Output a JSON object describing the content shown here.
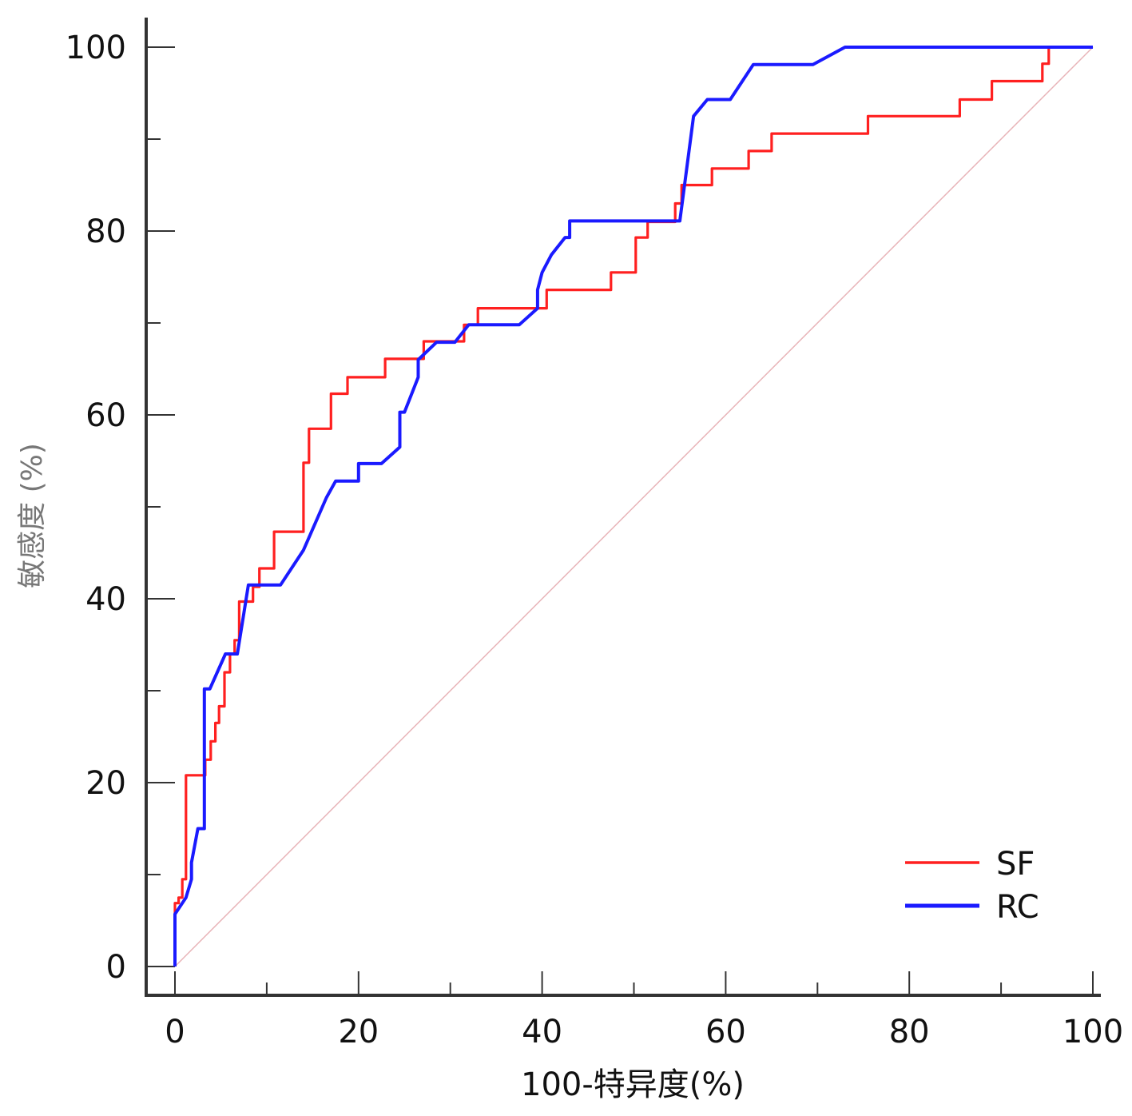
{
  "chart_data": {
    "type": "line",
    "title": "",
    "xlabel": "100-特异度(%)",
    "ylabel": "敏感度 (%)",
    "xlim": [
      0,
      100
    ],
    "ylim": [
      0,
      100
    ],
    "x_ticks": [
      0,
      20,
      40,
      60,
      80,
      100
    ],
    "y_ticks": [
      0,
      20,
      40,
      60,
      80,
      100
    ],
    "x_tick_labels": [
      "0",
      "20",
      "40",
      "60",
      "80",
      "100"
    ],
    "y_tick_labels": [
      "0",
      "20",
      "40",
      "60",
      "80",
      "100"
    ],
    "grid": false,
    "legend_position": "bottom-right",
    "reference_line": {
      "x": [
        0,
        100
      ],
      "y": [
        0,
        100
      ],
      "color": "#e8b4b8"
    },
    "series": [
      {
        "name": "SF",
        "color": "#ff2020",
        "x": [
          0,
          0,
          0.4,
          0.4,
          0.8,
          0.8,
          1.2,
          1.2,
          3.3,
          3.3,
          3.9,
          3.9,
          4.4,
          4.4,
          4.8,
          4.8,
          5.4,
          5.4,
          6,
          6,
          6.5,
          6.5,
          7,
          7,
          8.5,
          8.5,
          9.2,
          9.2,
          10.8,
          10.8,
          14,
          14,
          14.6,
          14.6,
          17,
          17,
          18.8,
          18.8,
          22.9,
          22.9,
          27.1,
          27.1,
          31.5,
          31.5,
          33,
          33,
          40.5,
          40.5,
          47.5,
          47.5,
          50.2,
          50.2,
          51.5,
          51.5,
          54.5,
          54.5,
          55.2,
          55.2,
          58.5,
          58.5,
          62.5,
          62.5,
          65,
          65,
          75.5,
          75.5,
          85.5,
          85.5,
          89,
          89,
          94.5,
          94.5,
          95.2,
          95.2
        ],
        "y": [
          0,
          6.9,
          6.9,
          7.5,
          7.5,
          9.5,
          9.5,
          20.8,
          20.8,
          22.5,
          22.5,
          24.5,
          24.5,
          26.5,
          26.5,
          28.3,
          28.3,
          32,
          32,
          34,
          34,
          35.5,
          35.5,
          39.7,
          39.7,
          41.3,
          41.3,
          43.3,
          43.3,
          47.3,
          47.3,
          54.8,
          54.8,
          58.5,
          58.5,
          62.3,
          62.3,
          64.1,
          64.1,
          66.1,
          66.1,
          68,
          68,
          69.8,
          69.8,
          71.6,
          71.6,
          73.6,
          73.6,
          75.5,
          75.5,
          79.3,
          79.3,
          81,
          81,
          83,
          83,
          85,
          85,
          86.8,
          86.8,
          88.7,
          88.7,
          90.6,
          90.6,
          92.5,
          92.5,
          94.3,
          94.3,
          96.3,
          96.3,
          98.2,
          98.2,
          100
        ]
      },
      {
        "name": "RC",
        "color": "#1a1aff",
        "x": [
          0,
          0,
          1.2,
          1.8,
          1.8,
          2.5,
          3.2,
          3.2,
          3.8,
          5.5,
          6.8,
          8,
          10.5,
          11.5,
          14,
          16.5,
          17.5,
          20,
          20,
          22.5,
          24.5,
          24.5,
          25,
          26.5,
          26.5,
          28.5,
          30.5,
          32,
          37.5,
          39.5,
          39.5,
          40,
          41,
          42.5,
          43,
          43,
          55,
          56.5,
          58,
          60.5,
          63,
          66.5,
          69.5,
          73,
          76,
          100
        ],
        "y": [
          0,
          5.7,
          7.5,
          9.5,
          11.3,
          15,
          15,
          30.2,
          30.2,
          34,
          34,
          41.5,
          41.5,
          41.5,
          45.3,
          51,
          52.8,
          52.8,
          54.7,
          54.7,
          56.5,
          60.3,
          60.3,
          64.1,
          66,
          67.9,
          67.9,
          69.8,
          69.8,
          71.6,
          73.6,
          75.5,
          77.4,
          79.3,
          79.3,
          81.1,
          81.1,
          92.5,
          94.3,
          94.3,
          98.1,
          98.1,
          98.1,
          100,
          100,
          100
        ]
      }
    ]
  }
}
